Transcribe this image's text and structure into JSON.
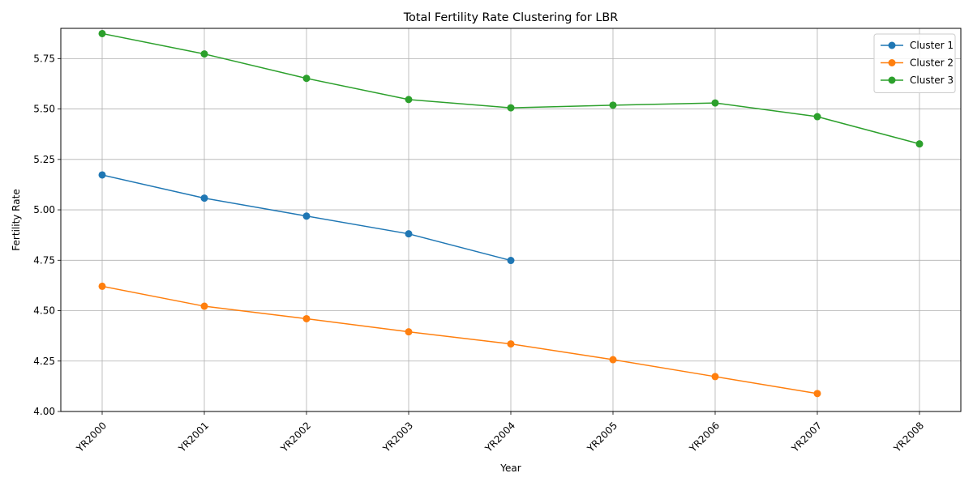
{
  "chart_data": {
    "type": "line",
    "title": "Total Fertility Rate Clustering for LBR",
    "xlabel": "Year",
    "ylabel": "Fertility Rate",
    "categories": [
      "YR2000",
      "YR2001",
      "YR2002",
      "YR2003",
      "YR2004",
      "YR2005",
      "YR2006",
      "YR2007",
      "YR2008"
    ],
    "ylim": [
      4.0,
      5.9
    ],
    "yticks": [
      "4.00",
      "4.25",
      "4.50",
      "4.75",
      "5.00",
      "5.25",
      "5.50",
      "5.75"
    ],
    "grid": true,
    "legend_position": "top-right",
    "series": [
      {
        "name": "Cluster 1",
        "color": "#1f77b4",
        "values": [
          5.173,
          5.058,
          4.969,
          4.881,
          4.749,
          null,
          null,
          null,
          null
        ]
      },
      {
        "name": "Cluster 2",
        "color": "#ff7f0e",
        "values": [
          4.621,
          4.522,
          4.46,
          4.395,
          4.335,
          4.257,
          4.173,
          4.089,
          null
        ]
      },
      {
        "name": "Cluster 3",
        "color": "#2ca02c",
        "values": [
          5.874,
          5.773,
          5.652,
          5.547,
          5.506,
          5.519,
          5.53,
          5.462,
          5.327
        ]
      }
    ]
  }
}
